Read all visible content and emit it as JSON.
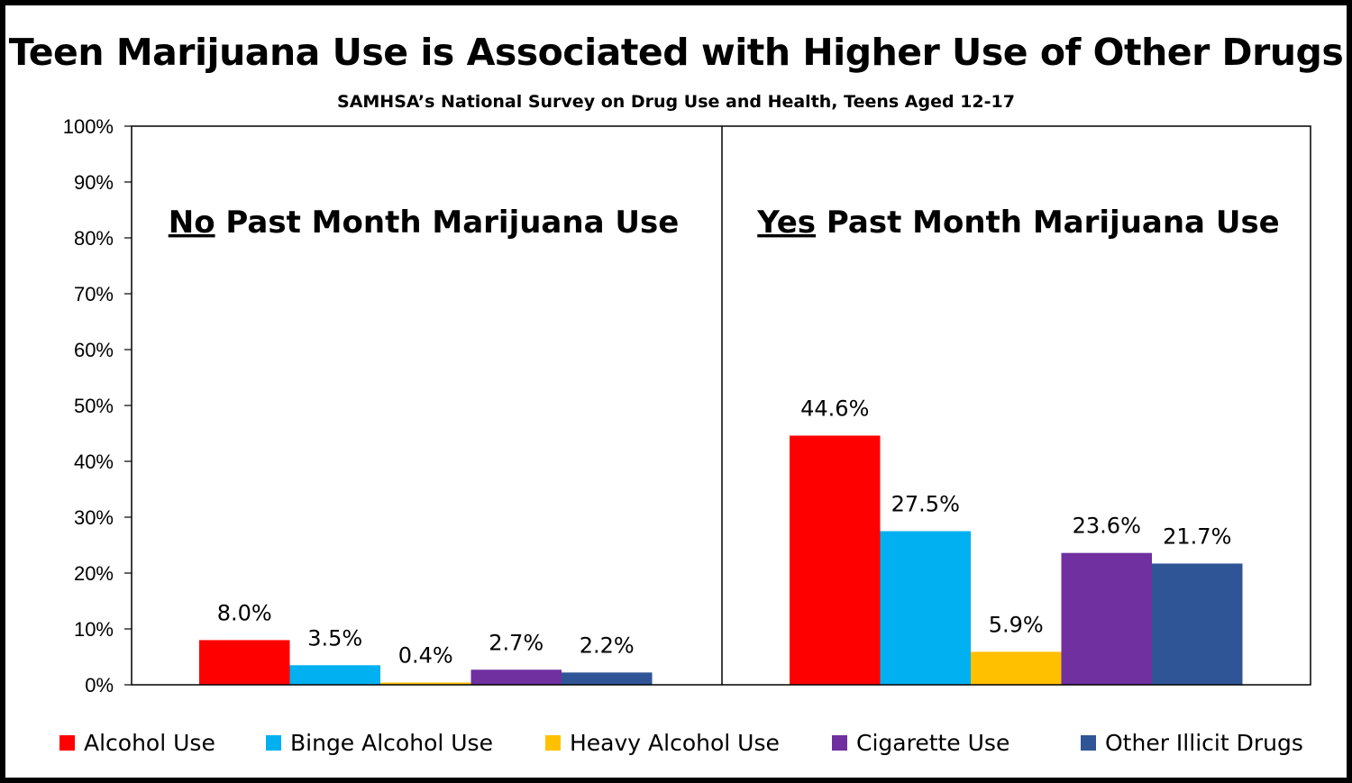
{
  "chart_data": {
    "type": "bar",
    "title": "Teen Marijuana Use is Associated with Higher Use of Other Drugs",
    "subtitle": "SAMHSA’s National Survey on Drug Use and Health, Teens Aged 12-17",
    "ylim": [
      0,
      100
    ],
    "yticks": [
      "0%",
      "10%",
      "20%",
      "30%",
      "40%",
      "50%",
      "60%",
      "70%",
      "80%",
      "90%",
      "100%"
    ],
    "grid": false,
    "legend_position": "bottom",
    "series": [
      {
        "name": "Alcohol Use",
        "color": "#ff0000"
      },
      {
        "name": "Binge Alcohol Use",
        "color": "#00b0f0"
      },
      {
        "name": "Heavy Alcohol Use",
        "color": "#ffc000"
      },
      {
        "name": "Cigarette Use",
        "color": "#7030a0"
      },
      {
        "name": "Other Illicit Drugs",
        "color": "#2f5597"
      }
    ],
    "groups": [
      {
        "title_emph": "No",
        "title_rest": " Past Month Marijuana Use",
        "values": [
          8.0,
          3.5,
          0.4,
          2.7,
          2.2
        ],
        "labels": [
          "8.0%",
          "3.5%",
          "0.4%",
          "2.7%",
          "2.2%"
        ]
      },
      {
        "title_emph": "Yes",
        "title_rest": " Past Month Marijuana Use",
        "values": [
          44.6,
          27.5,
          5.9,
          23.6,
          21.7
        ],
        "labels": [
          "44.6%",
          "27.5%",
          "5.9%",
          "23.6%",
          "21.7%"
        ]
      }
    ]
  }
}
